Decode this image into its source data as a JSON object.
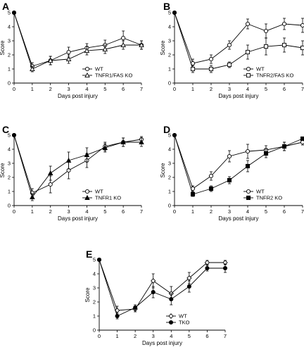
{
  "chart_data": [
    {
      "panel": "A",
      "type": "line",
      "xlabel": "Days post injury",
      "ylabel": "Score",
      "xlim": [
        0,
        7
      ],
      "ylim": [
        0,
        5
      ],
      "x_ticks": [
        0,
        1,
        2,
        3,
        4,
        5,
        6,
        7
      ],
      "y_ticks": [
        0,
        1,
        2,
        3,
        4,
        5
      ],
      "x": [
        0,
        1,
        2,
        3,
        4,
        5,
        6,
        7
      ],
      "legend_position": "bottom-right",
      "series": [
        {
          "name": "WT",
          "marker": "open-circle",
          "values": [
            5,
            1.2,
            1.6,
            2.2,
            2.5,
            2.7,
            3.2,
            2.7
          ],
          "errors": [
            0,
            0.25,
            0.3,
            0.35,
            0.3,
            0.35,
            0.5,
            0.3
          ]
        },
        {
          "name": "TNFR1/FAS KO",
          "marker": "open-triangle",
          "values": [
            5,
            1.0,
            1.6,
            1.7,
            2.3,
            2.4,
            2.7,
            2.7
          ],
          "errors": [
            0,
            0.2,
            0.3,
            0.3,
            0.3,
            0.3,
            0.3,
            0.3
          ]
        }
      ]
    },
    {
      "panel": "B",
      "type": "line",
      "xlabel": "Days post injury",
      "ylabel": "Score",
      "xlim": [
        0,
        7
      ],
      "ylim": [
        0,
        5
      ],
      "x_ticks": [
        0,
        1,
        2,
        3,
        4,
        5,
        6,
        7
      ],
      "y_ticks": [
        0,
        1,
        2,
        3,
        4,
        5
      ],
      "x": [
        0,
        1,
        2,
        3,
        4,
        5,
        6,
        7
      ],
      "legend_position": "bottom-right",
      "series": [
        {
          "name": "WT",
          "marker": "open-circle",
          "values": [
            5,
            1.4,
            1.7,
            2.7,
            4.2,
            3.7,
            4.2,
            4.1
          ],
          "errors": [
            0,
            0.3,
            0.3,
            0.3,
            0.35,
            0.5,
            0.4,
            0.5
          ]
        },
        {
          "name": "TNFR2/FAS KO",
          "marker": "open-square",
          "values": [
            5,
            1.0,
            1.0,
            1.3,
            2.2,
            2.6,
            2.7,
            2.5
          ],
          "errors": [
            0,
            0.25,
            0.25,
            0.2,
            0.5,
            0.6,
            0.5,
            0.5
          ]
        }
      ]
    },
    {
      "panel": "C",
      "type": "line",
      "xlabel": "Days post injury",
      "ylabel": "Score",
      "xlim": [
        0,
        7
      ],
      "ylim": [
        0,
        5
      ],
      "x_ticks": [
        0,
        1,
        2,
        3,
        4,
        5,
        6,
        7
      ],
      "y_ticks": [
        0,
        1,
        2,
        3,
        4,
        5
      ],
      "x": [
        0,
        1,
        2,
        3,
        4,
        5,
        6,
        7
      ],
      "legend_position": "bottom-right",
      "series": [
        {
          "name": "WT",
          "marker": "open-circle",
          "values": [
            5,
            0.9,
            1.5,
            2.5,
            3.2,
            4.2,
            4.5,
            4.7
          ],
          "errors": [
            0,
            0.3,
            0.6,
            0.6,
            0.5,
            0.3,
            0.3,
            0.2
          ]
        },
        {
          "name": "TNFR1 KO",
          "marker": "filled-triangle",
          "values": [
            5,
            0.6,
            2.3,
            3.2,
            3.6,
            4.1,
            4.5,
            4.5
          ],
          "errors": [
            0,
            0.25,
            0.5,
            0.6,
            0.5,
            0.3,
            0.3,
            0.3
          ]
        }
      ]
    },
    {
      "panel": "D",
      "type": "line",
      "xlabel": "Days post injury",
      "ylabel": "Score",
      "xlim": [
        0,
        7
      ],
      "ylim": [
        0,
        5
      ],
      "x_ticks": [
        0,
        1,
        2,
        3,
        4,
        5,
        6,
        7
      ],
      "y_ticks": [
        0,
        1,
        2,
        3,
        4,
        5
      ],
      "x": [
        0,
        1,
        2,
        3,
        4,
        5,
        6,
        7
      ],
      "legend_position": "bottom-right",
      "series": [
        {
          "name": "WT",
          "marker": "open-circle",
          "values": [
            5,
            1.2,
            2.1,
            3.5,
            3.85,
            3.95,
            4.2,
            4.5
          ],
          "errors": [
            0,
            0.2,
            0.3,
            0.4,
            0.5,
            0.3,
            0.3,
            0.2
          ]
        },
        {
          "name": "TNFR2 KO",
          "marker": "filled-square",
          "values": [
            5,
            0.8,
            1.2,
            1.8,
            2.8,
            3.7,
            4.2,
            4.75
          ],
          "errors": [
            0,
            0.15,
            0.2,
            0.25,
            0.4,
            0.3,
            0.3,
            0.1
          ]
        }
      ]
    },
    {
      "panel": "E",
      "type": "line",
      "xlabel": "Days post injury",
      "ylabel": "Score",
      "xlim": [
        0,
        7
      ],
      "ylim": [
        0,
        5
      ],
      "x_ticks": [
        0,
        1,
        2,
        3,
        4,
        5,
        6,
        7
      ],
      "y_ticks": [
        0,
        1,
        2,
        3,
        4,
        5
      ],
      "x": [
        0,
        1,
        2,
        3,
        4,
        5,
        6,
        7
      ],
      "legend_position": "bottom-right",
      "series": [
        {
          "name": "WT",
          "marker": "open-diamond",
          "values": [
            5,
            1.4,
            1.5,
            3.5,
            2.6,
            3.7,
            4.8,
            4.8
          ],
          "errors": [
            0,
            0.3,
            0.2,
            0.5,
            0.5,
            0.4,
            0.15,
            0.15
          ]
        },
        {
          "name": "TKO",
          "marker": "filled-circle",
          "values": [
            5,
            1.0,
            1.6,
            2.7,
            2.2,
            3.1,
            4.4,
            4.4
          ],
          "errors": [
            0,
            0.2,
            0.2,
            0.4,
            0.4,
            0.4,
            0.2,
            0.3
          ]
        }
      ]
    }
  ]
}
